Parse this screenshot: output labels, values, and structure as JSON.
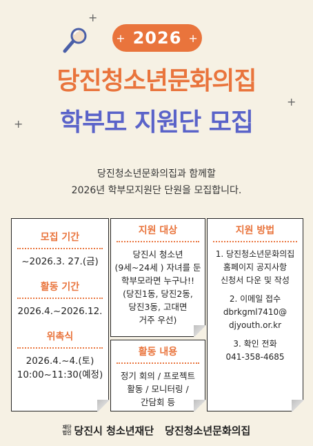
{
  "badge": {
    "year": "2026",
    "plus_left": "+",
    "plus_right": "+"
  },
  "title": {
    "line1": "당진청소년문화의집",
    "line2": "학부모 지원단 모집"
  },
  "intro": {
    "line1": "당진청소년문화의집과 함께할",
    "line2": "2026년 학부모지원단 단원을 모집합니다."
  },
  "schedule": {
    "recruit_label": "모집 기간",
    "recruit_value": "~2026.3. 27.(금)",
    "activity_label": "활동 기간",
    "activity_value": "2026.4.~2026.12.",
    "ceremony_label": "위촉식",
    "ceremony_date": "2026.4.~4.(토)",
    "ceremony_time": "10:00~11:30(예정)"
  },
  "target": {
    "label": "지원 대상",
    "lines": [
      "당진시 청소년",
      "(9세~24세 ) 자녀를 둔",
      "학부모라면 누구나!!",
      "(당진1동, 당진2동,",
      "당진3동, 고대면",
      "거주 우선)"
    ]
  },
  "activities": {
    "label": "활동 내용",
    "lines": [
      "정기 회의 / 프로젝트",
      "활동 / 모니터링 /",
      "간담회 등"
    ]
  },
  "method": {
    "label": "지원 방법",
    "step1": [
      "1. 당진청소년문화의집",
      "홈페이지 공지사항",
      "신청서 다운 및 작성"
    ],
    "step2": [
      "2. 이메일 접수",
      "dbrkgml7410@",
      "djyouth.or.kr"
    ],
    "step3": [
      "3. 확인 전화",
      "041-358-4685"
    ]
  },
  "footer": {
    "foundation_mark_1": "재단",
    "foundation_mark_2": "법인",
    "org1": "당진시 청소년재단",
    "org2": "당진청소년문화의집"
  },
  "colors": {
    "accent_orange": "#e9743c",
    "accent_blue": "#5a63c9",
    "background": "#f6f1e4"
  }
}
